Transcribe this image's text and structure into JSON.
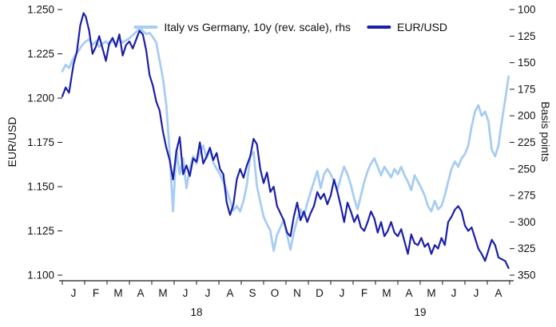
{
  "chart_data": {
    "type": "line",
    "title": "",
    "left_axis_title": "EUR/USD",
    "right_axis_title": "Basis points",
    "xlim": [
      0,
      20
    ],
    "x_unit": "months since Jan 2018",
    "left_ylim": [
      1.1,
      1.25
    ],
    "right_ylim": [
      350,
      100
    ],
    "right_axis_reversed": true,
    "grid": false,
    "legend_position": "top-center",
    "left_ticks": [
      1.25,
      1.225,
      1.2,
      1.175,
      1.15,
      1.125,
      1.1
    ],
    "right_ticks": [
      100,
      125,
      150,
      175,
      200,
      225,
      250,
      275,
      300,
      325,
      350
    ],
    "x_tick_labels": [
      "J",
      "F",
      "M",
      "A",
      "M",
      "J",
      "J",
      "A",
      "S",
      "O",
      "N",
      "D",
      "J",
      "F",
      "M",
      "A",
      "M",
      "J",
      "J",
      "A"
    ],
    "year_labels": [
      {
        "label": "18",
        "x": 6
      },
      {
        "label": "19",
        "x": 16
      }
    ],
    "series": [
      {
        "name": "Italy vs Germany, 10y (rev. scale), rhs",
        "axis": "right",
        "unit": "basis points",
        "color": "#a8cdf2",
        "points": [
          [
            0.0,
            158
          ],
          [
            0.15,
            152
          ],
          [
            0.3,
            155
          ],
          [
            0.45,
            148
          ],
          [
            0.6,
            142
          ],
          [
            0.75,
            138
          ],
          [
            0.9,
            133
          ],
          [
            1.05,
            130
          ],
          [
            1.2,
            128
          ],
          [
            1.35,
            133
          ],
          [
            1.5,
            130
          ],
          [
            1.65,
            135
          ],
          [
            1.8,
            132
          ],
          [
            1.95,
            130
          ],
          [
            2.1,
            133
          ],
          [
            2.25,
            129
          ],
          [
            2.4,
            132
          ],
          [
            2.55,
            128
          ],
          [
            2.7,
            131
          ],
          [
            2.85,
            129
          ],
          [
            3.0,
            127
          ],
          [
            3.15,
            124
          ],
          [
            3.3,
            121
          ],
          [
            3.45,
            118
          ],
          [
            3.6,
            120
          ],
          [
            3.75,
            123
          ],
          [
            3.9,
            122
          ],
          [
            4.05,
            126
          ],
          [
            4.2,
            131
          ],
          [
            4.35,
            148
          ],
          [
            4.5,
            165
          ],
          [
            4.65,
            190
          ],
          [
            4.8,
            235
          ],
          [
            4.95,
            290
          ],
          [
            5.1,
            232
          ],
          [
            5.25,
            255
          ],
          [
            5.4,
            240
          ],
          [
            5.55,
            268
          ],
          [
            5.7,
            250
          ],
          [
            5.85,
            238
          ],
          [
            6.0,
            245
          ],
          [
            6.15,
            235
          ],
          [
            6.3,
            228
          ],
          [
            6.45,
            240
          ],
          [
            6.6,
            232
          ],
          [
            6.75,
            244
          ],
          [
            6.9,
            250
          ],
          [
            7.05,
            255
          ],
          [
            7.2,
            262
          ],
          [
            7.35,
            270
          ],
          [
            7.5,
            280
          ],
          [
            7.65,
            289
          ],
          [
            7.8,
            285
          ],
          [
            7.95,
            290
          ],
          [
            8.1,
            280
          ],
          [
            8.25,
            265
          ],
          [
            8.4,
            238
          ],
          [
            8.55,
            234
          ],
          [
            8.7,
            266
          ],
          [
            8.85,
            281
          ],
          [
            9.0,
            295
          ],
          [
            9.15,
            302
          ],
          [
            9.3,
            308
          ],
          [
            9.45,
            327
          ],
          [
            9.6,
            312
          ],
          [
            9.75,
            305
          ],
          [
            9.9,
            298
          ],
          [
            10.05,
            312
          ],
          [
            10.2,
            326
          ],
          [
            10.35,
            310
          ],
          [
            10.5,
            298
          ],
          [
            10.65,
            288
          ],
          [
            10.8,
            295
          ],
          [
            10.95,
            282
          ],
          [
            11.1,
            272
          ],
          [
            11.25,
            262
          ],
          [
            11.4,
            252
          ],
          [
            11.55,
            268
          ],
          [
            11.7,
            255
          ],
          [
            11.85,
            250
          ],
          [
            12.0,
            255
          ],
          [
            12.15,
            262
          ],
          [
            12.3,
            270
          ],
          [
            12.45,
            258
          ],
          [
            12.6,
            248
          ],
          [
            12.75,
            255
          ],
          [
            12.9,
            265
          ],
          [
            13.05,
            278
          ],
          [
            13.2,
            288
          ],
          [
            13.35,
            275
          ],
          [
            13.5,
            262
          ],
          [
            13.65,
            252
          ],
          [
            13.8,
            245
          ],
          [
            13.95,
            240
          ],
          [
            14.1,
            248
          ],
          [
            14.25,
            256
          ],
          [
            14.4,
            248
          ],
          [
            14.55,
            253
          ],
          [
            14.7,
            258
          ],
          [
            14.85,
            250
          ],
          [
            15.0,
            255
          ],
          [
            15.15,
            248
          ],
          [
            15.3,
            256
          ],
          [
            15.45,
            262
          ],
          [
            15.6,
            270
          ],
          [
            15.75,
            256
          ],
          [
            15.9,
            262
          ],
          [
            16.05,
            268
          ],
          [
            16.2,
            275
          ],
          [
            16.35,
            285
          ],
          [
            16.5,
            290
          ],
          [
            16.65,
            280
          ],
          [
            16.8,
            288
          ],
          [
            16.95,
            285
          ],
          [
            17.1,
            275
          ],
          [
            17.25,
            262
          ],
          [
            17.4,
            250
          ],
          [
            17.55,
            243
          ],
          [
            17.7,
            248
          ],
          [
            17.85,
            240
          ],
          [
            18.0,
            236
          ],
          [
            18.15,
            228
          ],
          [
            18.3,
            210
          ],
          [
            18.45,
            196
          ],
          [
            18.6,
            190
          ],
          [
            18.75,
            200
          ],
          [
            18.9,
            196
          ],
          [
            19.05,
            205
          ],
          [
            19.2,
            232
          ],
          [
            19.35,
            238
          ],
          [
            19.5,
            228
          ],
          [
            19.65,
            205
          ],
          [
            19.8,
            185
          ],
          [
            19.95,
            163
          ]
        ]
      },
      {
        "name": "EUR/USD",
        "axis": "left",
        "unit": "exchange rate",
        "color": "#1b1fa8",
        "points": [
          [
            0.0,
            1.201
          ],
          [
            0.15,
            1.206
          ],
          [
            0.3,
            1.203
          ],
          [
            0.5,
            1.219
          ],
          [
            0.65,
            1.226
          ],
          [
            0.8,
            1.241
          ],
          [
            0.95,
            1.248
          ],
          [
            1.05,
            1.246
          ],
          [
            1.2,
            1.238
          ],
          [
            1.35,
            1.225
          ],
          [
            1.5,
            1.229
          ],
          [
            1.65,
            1.235
          ],
          [
            1.8,
            1.228
          ],
          [
            1.95,
            1.221
          ],
          [
            2.1,
            1.231
          ],
          [
            2.25,
            1.234
          ],
          [
            2.4,
            1.229
          ],
          [
            2.55,
            1.236
          ],
          [
            2.7,
            1.224
          ],
          [
            2.85,
            1.23
          ],
          [
            3.0,
            1.232
          ],
          [
            3.15,
            1.228
          ],
          [
            3.3,
            1.233
          ],
          [
            3.45,
            1.238
          ],
          [
            3.6,
            1.236
          ],
          [
            3.75,
            1.227
          ],
          [
            3.9,
            1.213
          ],
          [
            4.05,
            1.207
          ],
          [
            4.2,
            1.198
          ],
          [
            4.35,
            1.193
          ],
          [
            4.5,
            1.181
          ],
          [
            4.65,
            1.172
          ],
          [
            4.8,
            1.165
          ],
          [
            4.95,
            1.154
          ],
          [
            5.1,
            1.17
          ],
          [
            5.25,
            1.178
          ],
          [
            5.4,
            1.157
          ],
          [
            5.55,
            1.162
          ],
          [
            5.7,
            1.156
          ],
          [
            5.85,
            1.166
          ],
          [
            6.0,
            1.164
          ],
          [
            6.15,
            1.175
          ],
          [
            6.3,
            1.163
          ],
          [
            6.45,
            1.167
          ],
          [
            6.6,
            1.172
          ],
          [
            6.75,
            1.165
          ],
          [
            6.9,
            1.169
          ],
          [
            7.05,
            1.16
          ],
          [
            7.2,
            1.157
          ],
          [
            7.35,
            1.141
          ],
          [
            7.5,
            1.134
          ],
          [
            7.65,
            1.14
          ],
          [
            7.8,
            1.154
          ],
          [
            7.95,
            1.16
          ],
          [
            8.1,
            1.155
          ],
          [
            8.25,
            1.162
          ],
          [
            8.4,
            1.167
          ],
          [
            8.55,
            1.177
          ],
          [
            8.7,
            1.174
          ],
          [
            8.85,
            1.16
          ],
          [
            9.0,
            1.152
          ],
          [
            9.15,
            1.158
          ],
          [
            9.3,
            1.147
          ],
          [
            9.45,
            1.15
          ],
          [
            9.6,
            1.139
          ],
          [
            9.75,
            1.135
          ],
          [
            9.9,
            1.131
          ],
          [
            10.05,
            1.124
          ],
          [
            10.2,
            1.122
          ],
          [
            10.35,
            1.133
          ],
          [
            10.5,
            1.141
          ],
          [
            10.65,
            1.131
          ],
          [
            10.8,
            1.136
          ],
          [
            10.95,
            1.13
          ],
          [
            11.1,
            1.135
          ],
          [
            11.25,
            1.139
          ],
          [
            11.4,
            1.147
          ],
          [
            11.55,
            1.143
          ],
          [
            11.7,
            1.146
          ],
          [
            11.85,
            1.14
          ],
          [
            12.0,
            1.145
          ],
          [
            12.15,
            1.154
          ],
          [
            12.3,
            1.147
          ],
          [
            12.45,
            1.139
          ],
          [
            12.6,
            1.13
          ],
          [
            12.75,
            1.141
          ],
          [
            12.9,
            1.136
          ],
          [
            13.05,
            1.13
          ],
          [
            13.2,
            1.134
          ],
          [
            13.35,
            1.127
          ],
          [
            13.5,
            1.125
          ],
          [
            13.65,
            1.13
          ],
          [
            13.8,
            1.136
          ],
          [
            13.95,
            1.132
          ],
          [
            14.1,
            1.124
          ],
          [
            14.25,
            1.13
          ],
          [
            14.4,
            1.122
          ],
          [
            14.55,
            1.125
          ],
          [
            14.7,
            1.13
          ],
          [
            14.85,
            1.124
          ],
          [
            15.0,
            1.122
          ],
          [
            15.15,
            1.126
          ],
          [
            15.3,
            1.119
          ],
          [
            15.45,
            1.112
          ],
          [
            15.6,
            1.123
          ],
          [
            15.75,
            1.118
          ],
          [
            15.9,
            1.117
          ],
          [
            16.05,
            1.121
          ],
          [
            16.2,
            1.116
          ],
          [
            16.35,
            1.118
          ],
          [
            16.5,
            1.112
          ],
          [
            16.65,
            1.117
          ],
          [
            16.8,
            1.115
          ],
          [
            16.95,
            1.121
          ],
          [
            17.1,
            1.117
          ],
          [
            17.25,
            1.13
          ],
          [
            17.4,
            1.133
          ],
          [
            17.55,
            1.137
          ],
          [
            17.7,
            1.139
          ],
          [
            17.85,
            1.136
          ],
          [
            18.0,
            1.128
          ],
          [
            18.15,
            1.125
          ],
          [
            18.3,
            1.127
          ],
          [
            18.45,
            1.121
          ],
          [
            18.6,
            1.115
          ],
          [
            18.75,
            1.112
          ],
          [
            18.9,
            1.108
          ],
          [
            19.05,
            1.114
          ],
          [
            19.2,
            1.12
          ],
          [
            19.35,
            1.117
          ],
          [
            19.5,
            1.11
          ],
          [
            19.65,
            1.109
          ],
          [
            19.8,
            1.108
          ],
          [
            19.95,
            1.104
          ]
        ]
      }
    ]
  }
}
